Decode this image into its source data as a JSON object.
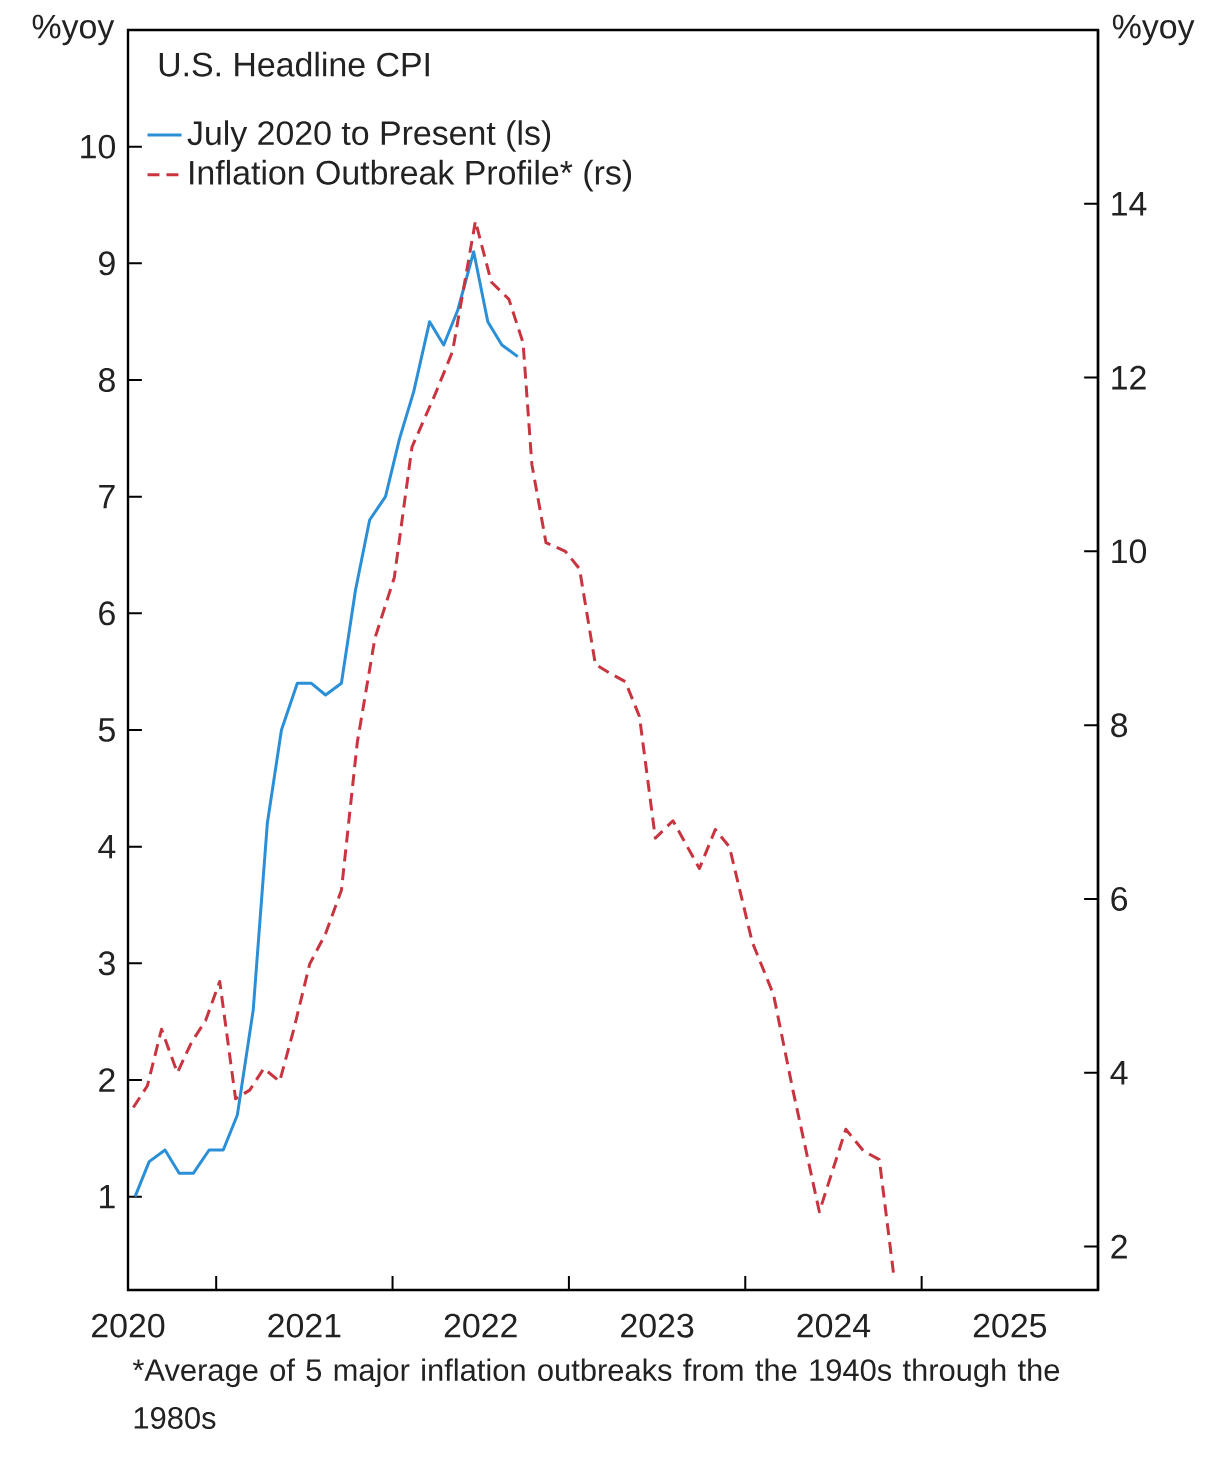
{
  "chart_data": {
    "type": "line",
    "title": "U.S. Headline CPI",
    "ylabel": "%yoy",
    "y2label": "%yoy",
    "xlim": [
      2020.5,
      2026
    ],
    "ylim": [
      0.2,
      11
    ],
    "y2lim": [
      1.5,
      16
    ],
    "xticks": [
      {
        "value": 2021,
        "label": null
      },
      {
        "value": 2022,
        "label": null
      },
      {
        "value": 2023,
        "label": null
      },
      {
        "value": 2024,
        "label": null
      },
      {
        "value": 2025,
        "label": null
      },
      {
        "value": 2020.5,
        "label": "2020"
      },
      {
        "value": 2021.5,
        "label": "2021"
      },
      {
        "value": 2022.5,
        "label": "2022"
      },
      {
        "value": 2023.5,
        "label": "2023"
      },
      {
        "value": 2024.5,
        "label": "2024"
      },
      {
        "value": 2025.5,
        "label": "2025"
      }
    ],
    "yticks": [
      1,
      2,
      3,
      4,
      5,
      6,
      7,
      8,
      9,
      10
    ],
    "y2ticks": [
      2,
      4,
      6,
      8,
      10,
      12,
      14
    ],
    "legend": "top left",
    "marker": "none",
    "annotations": [
      "*Average of 5 major inflation outbreaks from the 1940s through the 1980s"
    ],
    "series": [
      {
        "name": "July 2020 to Present (ls)",
        "color": "#2b8fd8",
        "axis": "y",
        "line_style": "solid",
        "x": [
          2020.54,
          2020.62,
          2020.71,
          2020.79,
          2020.87,
          2020.96,
          2021.04,
          2021.12,
          2021.21,
          2021.29,
          2021.37,
          2021.46,
          2021.54,
          2021.62,
          2021.71,
          2021.79,
          2021.87,
          2021.96,
          2022.04,
          2022.12,
          2022.21,
          2022.29,
          2022.37,
          2022.46,
          2022.54,
          2022.62,
          2022.71
        ],
        "values": [
          1.0,
          1.3,
          1.4,
          1.2,
          1.2,
          1.4,
          1.4,
          1.7,
          2.6,
          4.2,
          5.0,
          5.4,
          5.4,
          5.3,
          5.4,
          6.2,
          6.8,
          7.0,
          7.5,
          7.9,
          8.5,
          8.3,
          8.6,
          9.1,
          8.5,
          8.3,
          8.2
        ]
      },
      {
        "name": "Inflation Outbreak Profile* (rs)",
        "color": "#c8343f",
        "axis": "y2",
        "line_style": "dashed",
        "x": [
          2020.53,
          2020.61,
          2020.69,
          2020.78,
          2020.86,
          2020.94,
          2021.02,
          2021.11,
          2021.19,
          2021.27,
          2021.36,
          2021.44,
          2021.53,
          2021.62,
          2021.71,
          2021.8,
          2021.9,
          2022.01,
          2022.11,
          2022.24,
          2022.34,
          2022.47,
          2022.56,
          2022.66,
          2022.74,
          2022.79,
          2022.87,
          2022.98,
          2023.06,
          2023.15,
          2023.23,
          2023.32,
          2023.4,
          2023.49,
          2023.59,
          2023.74,
          2023.83,
          2023.91,
          2024.04,
          2024.16,
          2024.27,
          2024.42,
          2024.57,
          2024.67,
          2024.76,
          2024.84
        ],
        "values": [
          3.6,
          3.85,
          4.5,
          4.0,
          4.35,
          4.6,
          5.05,
          3.7,
          3.8,
          4.05,
          3.9,
          4.5,
          5.25,
          5.6,
          6.1,
          7.8,
          9.0,
          9.7,
          11.2,
          11.8,
          12.3,
          13.8,
          13.1,
          12.9,
          12.4,
          11.0,
          10.1,
          10.0,
          9.8,
          8.7,
          8.6,
          8.5,
          8.1,
          6.7,
          6.9,
          6.35,
          6.8,
          6.6,
          5.5,
          4.9,
          3.8,
          2.4,
          3.35,
          3.1,
          3.0,
          1.7
        ]
      }
    ]
  }
}
